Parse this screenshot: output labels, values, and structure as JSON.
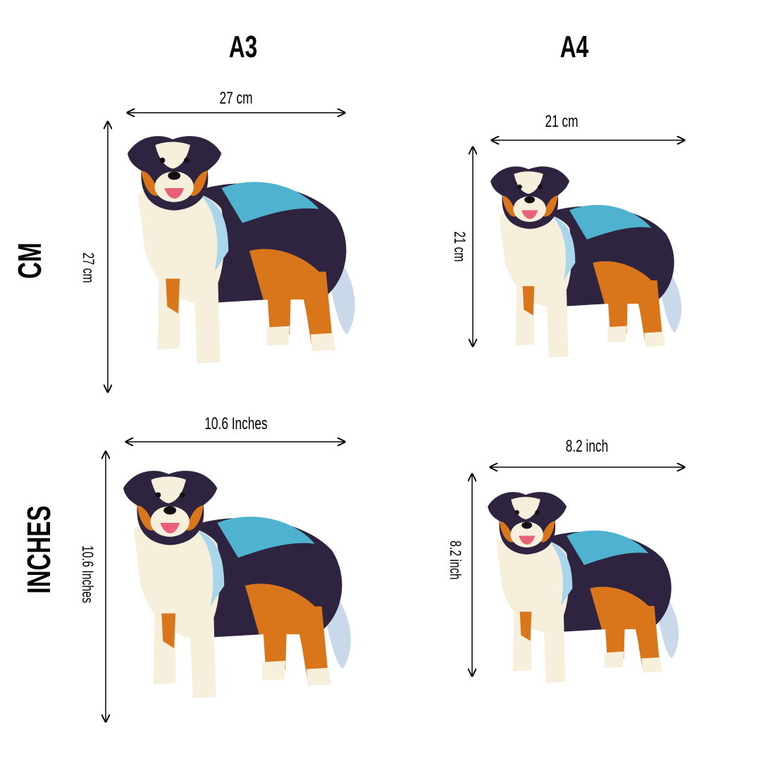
{
  "columns": {
    "a3": "A3",
    "a4": "A4"
  },
  "rows": {
    "cm": "CM",
    "inches": "INCHES"
  },
  "dimensions": {
    "a3_cm": {
      "width": "27 cm",
      "height": "27 cm"
    },
    "a4_cm": {
      "width": "21 cm",
      "height": "21 cm"
    },
    "a3_inches": {
      "width": "10.6  Inches",
      "height": "10.6 Inches"
    },
    "a4_inches": {
      "width": "8.2 inch",
      "height": "8.2 inch"
    }
  },
  "colors": {
    "fur_dark": "#2e2440",
    "fur_blue": "#4fb3cf",
    "fur_copper": "#d9761c",
    "fur_white": "#f6efdc"
  }
}
